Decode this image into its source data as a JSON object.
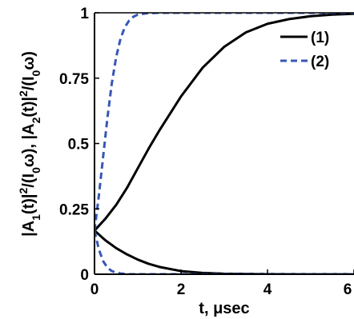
{
  "chart_data": {
    "type": "line",
    "xlabel": "t, μsec",
    "ylabel_parts": [
      "|A",
      "1",
      "(t)|",
      "2",
      "/(I",
      "0",
      "ω), |A",
      "2",
      "(t)|",
      "2",
      "/(I",
      "0",
      "ω)"
    ],
    "xlim": [
      0,
      6
    ],
    "ylim": [
      0,
      1
    ],
    "x_ticks": [
      0,
      2,
      4,
      6
    ],
    "y_ticks": [
      0,
      0.25,
      0.5,
      0.75,
      1
    ],
    "x_tick_labels": [
      "0",
      "2",
      "4",
      "6"
    ],
    "y_tick_labels": [
      "0",
      "0.25",
      "0.5",
      "0.75",
      "1"
    ],
    "grid": false,
    "legend_position": "top-right",
    "series": [
      {
        "name": "(1)",
        "color": "#000000",
        "dash": "solid",
        "x": [
          0,
          0.25,
          0.5,
          0.75,
          1,
          1.25,
          1.5,
          2,
          2.5,
          3,
          3.5,
          4,
          4.5,
          5,
          5.5,
          6
        ],
        "y": [
          0.167,
          0.212,
          0.265,
          0.33,
          0.405,
          0.48,
          0.55,
          0.68,
          0.79,
          0.87,
          0.925,
          0.958,
          0.976,
          0.987,
          0.993,
          0.996
        ]
      },
      {
        "name": "",
        "color": "#000000",
        "dash": "solid",
        "x": [
          0,
          0.25,
          0.5,
          0.75,
          1,
          1.25,
          1.5,
          2,
          2.5,
          3,
          3.5,
          4,
          5,
          6
        ],
        "y": [
          0.167,
          0.13,
          0.1,
          0.076,
          0.056,
          0.04,
          0.028,
          0.012,
          0.005,
          0.002,
          0.001,
          0.0005,
          0,
          0
        ]
      },
      {
        "name": "(2)",
        "color": "#3757b5",
        "dash": "dashed",
        "x": [
          0,
          0.1,
          0.2,
          0.3,
          0.4,
          0.5,
          0.6,
          0.7,
          0.8,
          0.9,
          1,
          1.2,
          1.5,
          2,
          3,
          4,
          5,
          6
        ],
        "y": [
          0.167,
          0.3,
          0.45,
          0.6,
          0.73,
          0.83,
          0.9,
          0.945,
          0.97,
          0.985,
          0.993,
          0.998,
          1,
          1,
          1,
          1,
          1,
          1
        ]
      },
      {
        "name": "",
        "color": "#3757b5",
        "dash": "dashed",
        "x": [
          0,
          0.1,
          0.2,
          0.3,
          0.4,
          0.5,
          0.6,
          0.7,
          0.8,
          1,
          1.5,
          2,
          3,
          4,
          5,
          6
        ],
        "y": [
          0.167,
          0.095,
          0.05,
          0.025,
          0.012,
          0.006,
          0.003,
          0.0015,
          0,
          0,
          0,
          0,
          0,
          0,
          0,
          0
        ]
      }
    ],
    "legend": [
      {
        "label": "(1)",
        "color": "#000000",
        "dash": "solid"
      },
      {
        "label": "(2)",
        "color": "#3757b5",
        "dash": "dashed"
      }
    ]
  }
}
